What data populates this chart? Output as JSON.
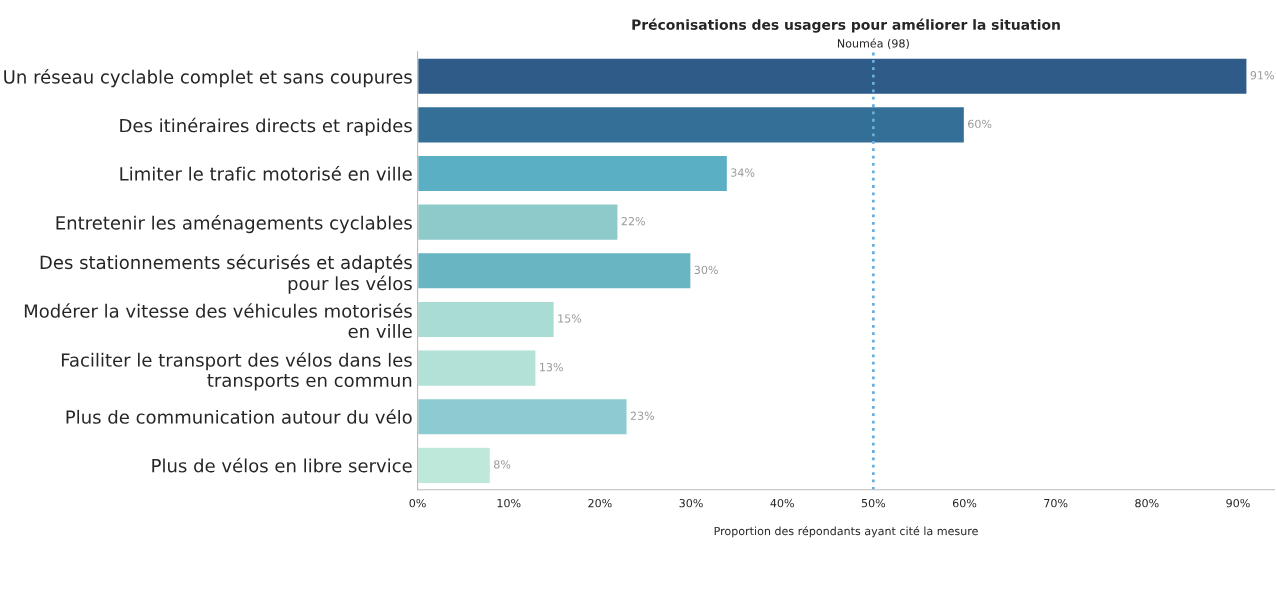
{
  "chart_data": {
    "type": "bar",
    "orientation": "horizontal",
    "title": "Préconisations des usagers pour améliorer la situation",
    "xlabel": "Proportion des répondants ayant cité la mesure",
    "categories": [
      "Un réseau cyclable complet et sans coupures",
      "Des itinéraires directs et rapides",
      "Limiter le trafic motorisé en ville",
      "Entretenir les aménagements cyclables",
      "Des stationnements sécurisés et adaptés\npour les vélos",
      "Modérer la vitesse des véhicules motorisés\nen ville",
      "Faciliter le transport des vélos dans les\ntransports en commun",
      "Plus de communication autour du vélo",
      "Plus de vélos en libre service"
    ],
    "values": [
      91,
      60,
      34,
      22,
      30,
      15,
      13,
      23,
      8
    ],
    "value_labels": [
      "91%",
      "60%",
      "34%",
      "22%",
      "30%",
      "15%",
      "13%",
      "23%",
      "8%"
    ],
    "colors": [
      "#2e5b88",
      "#346f98",
      "#5aafc4",
      "#8fcacb",
      "#6ab5c2",
      "#a9dcd2",
      "#b2e2d7",
      "#8ccbcf",
      "#bee8da"
    ],
    "xlim": [
      0,
      94
    ],
    "xticks": [
      {
        "value": 0,
        "label": "0%"
      },
      {
        "value": 10,
        "label": "10%"
      },
      {
        "value": 20,
        "label": "20%"
      },
      {
        "value": 30,
        "label": "30%"
      },
      {
        "value": 40,
        "label": "40%"
      },
      {
        "value": 50,
        "label": "50%"
      },
      {
        "value": 60,
        "label": "60%"
      },
      {
        "value": 70,
        "label": "70%"
      },
      {
        "value": 80,
        "label": "80%"
      },
      {
        "value": 90,
        "label": "90%"
      }
    ],
    "ref_lines": [
      {
        "axis": "x",
        "value": 50,
        "label": "Nouméa (98)",
        "color": "#6aaee0",
        "line_style": "dotted"
      }
    ],
    "grid": false,
    "legend": false
  }
}
